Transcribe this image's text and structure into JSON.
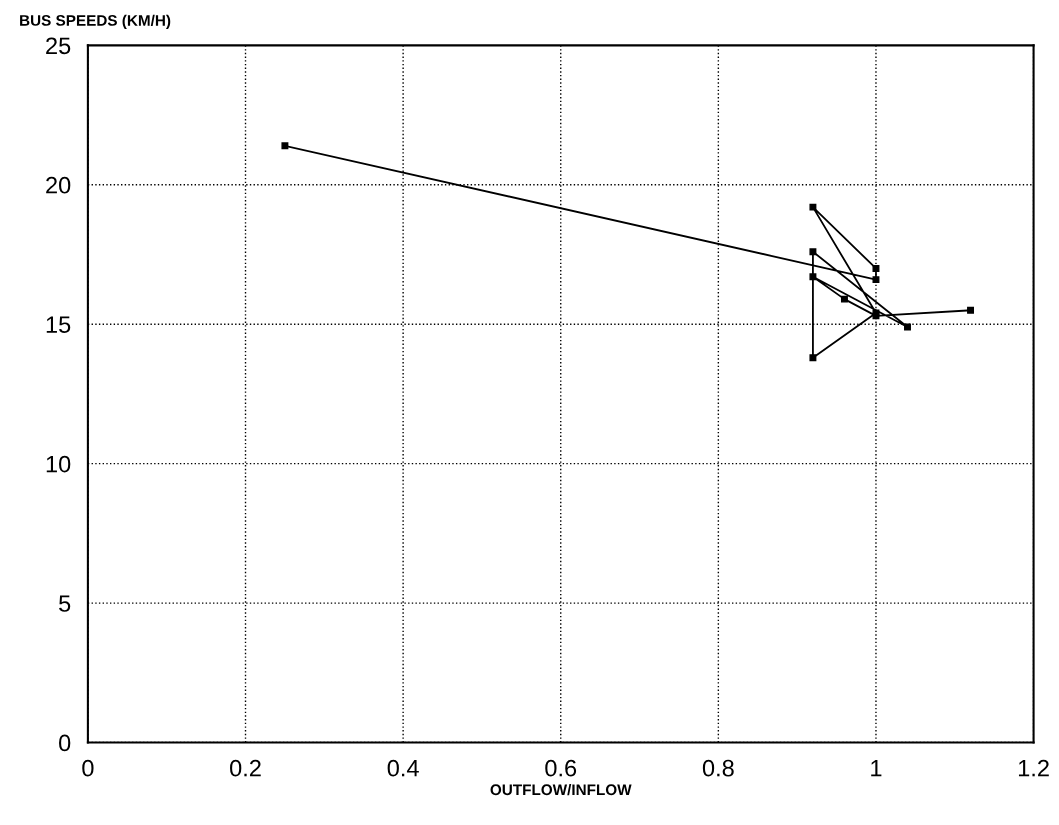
{
  "chart_data": {
    "type": "line",
    "ylabel": "BUS SPEEDS (KM/H)",
    "xlabel": "OUTFLOW/INFLOW",
    "x": [
      0.25,
      1.0,
      1.0,
      0.92,
      1.0,
      0.92,
      0.92,
      1.04,
      0.92,
      0.96,
      1.0,
      1.12
    ],
    "series": [
      {
        "color": "#000000",
        "values": [
          21.4,
          16.6,
          17.0,
          19.2,
          15.4,
          13.8,
          17.6,
          14.9,
          16.7,
          15.9,
          15.3,
          15.5
        ]
      }
    ],
    "xlim": [
      0,
      1.2
    ],
    "xticks": [
      0,
      0.2,
      0.4,
      0.6,
      0.8,
      1,
      1.2
    ],
    "ylim": [
      0,
      25
    ],
    "yticks": [
      0,
      5,
      10,
      15,
      20,
      25
    ],
    "grid": true,
    "marker": "square",
    "line_style": "solid"
  }
}
